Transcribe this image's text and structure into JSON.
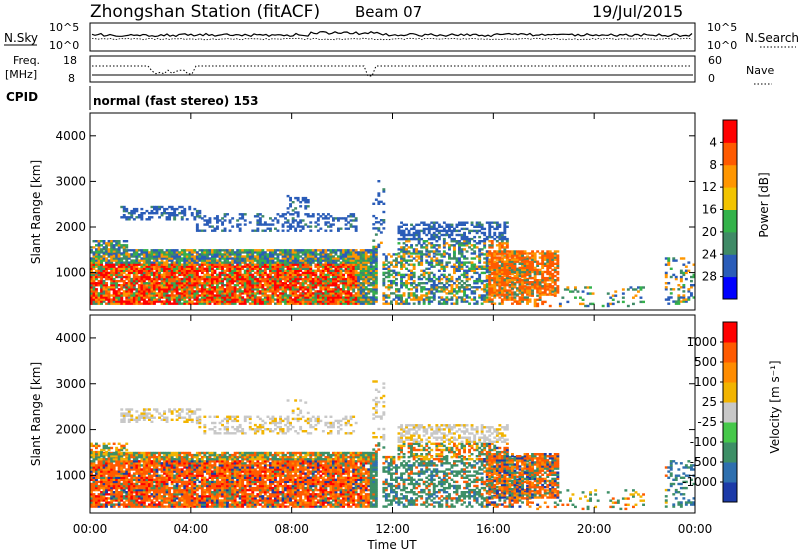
{
  "header": {
    "station": "Zhongshan Station (fitACF)",
    "beam": "Beam 07",
    "date": "19/Jul/2015"
  },
  "noise_panel": {
    "left_label": "N.Sky",
    "right_label": "N.Search",
    "left_ticks": [
      "10^5",
      "10^0"
    ],
    "right_ticks": [
      "10^5",
      "10^0"
    ]
  },
  "freq_panel": {
    "left_label_line1": "Freq.",
    "left_label_line2": "[MHz]",
    "right_label": "Nave",
    "left_ticks": [
      "18",
      "8"
    ],
    "right_ticks": [
      "60",
      "0"
    ]
  },
  "cpid": {
    "label": "CPID",
    "value": "normal (fast stereo) 153"
  },
  "chart_data": [
    {
      "type": "heatmap",
      "title": "",
      "xlabel": "Time UT",
      "ylabel": "Slant Range [km]",
      "xlim": [
        0,
        24
      ],
      "ylim": [
        180,
        4500
      ],
      "x_ticks": [
        "00:00",
        "04:00",
        "08:00",
        "12:00",
        "16:00",
        "20:00",
        "00:00"
      ],
      "y_ticks": [
        "1000",
        "2000",
        "3000",
        "4000"
      ],
      "colorbar": {
        "label": "Power [dB]",
        "ticks": [
          "4",
          "8",
          "12",
          "16",
          "20",
          "24",
          "28"
        ],
        "colors": [
          "#0000ff",
          "#2a5cb8",
          "#3f8a66",
          "#33b24a",
          "#f2c400",
          "#ff9600",
          "#ff5a00",
          "#ff0000"
        ]
      }
    },
    {
      "type": "heatmap",
      "title": "",
      "xlabel": "Time UT",
      "ylabel": "Slant Range [km]",
      "xlim": [
        0,
        24
      ],
      "ylim": [
        180,
        4500
      ],
      "x_ticks": [
        "00:00",
        "04:00",
        "08:00",
        "12:00",
        "16:00",
        "20:00",
        "00:00"
      ],
      "y_ticks": [
        "1000",
        "2000",
        "3000",
        "4000"
      ],
      "colorbar": {
        "label": "Velocity [m s⁻¹]",
        "ticks": [
          "1000",
          "500",
          "100",
          "25",
          "-25",
          "-100",
          "-500",
          "-1000"
        ],
        "colors": [
          "#1c3aa8",
          "#2e6fae",
          "#3d8f66",
          "#46c84a",
          "#c8c8c8",
          "#f2b400",
          "#ff8c00",
          "#ff5a00",
          "#ff0000"
        ]
      }
    }
  ]
}
